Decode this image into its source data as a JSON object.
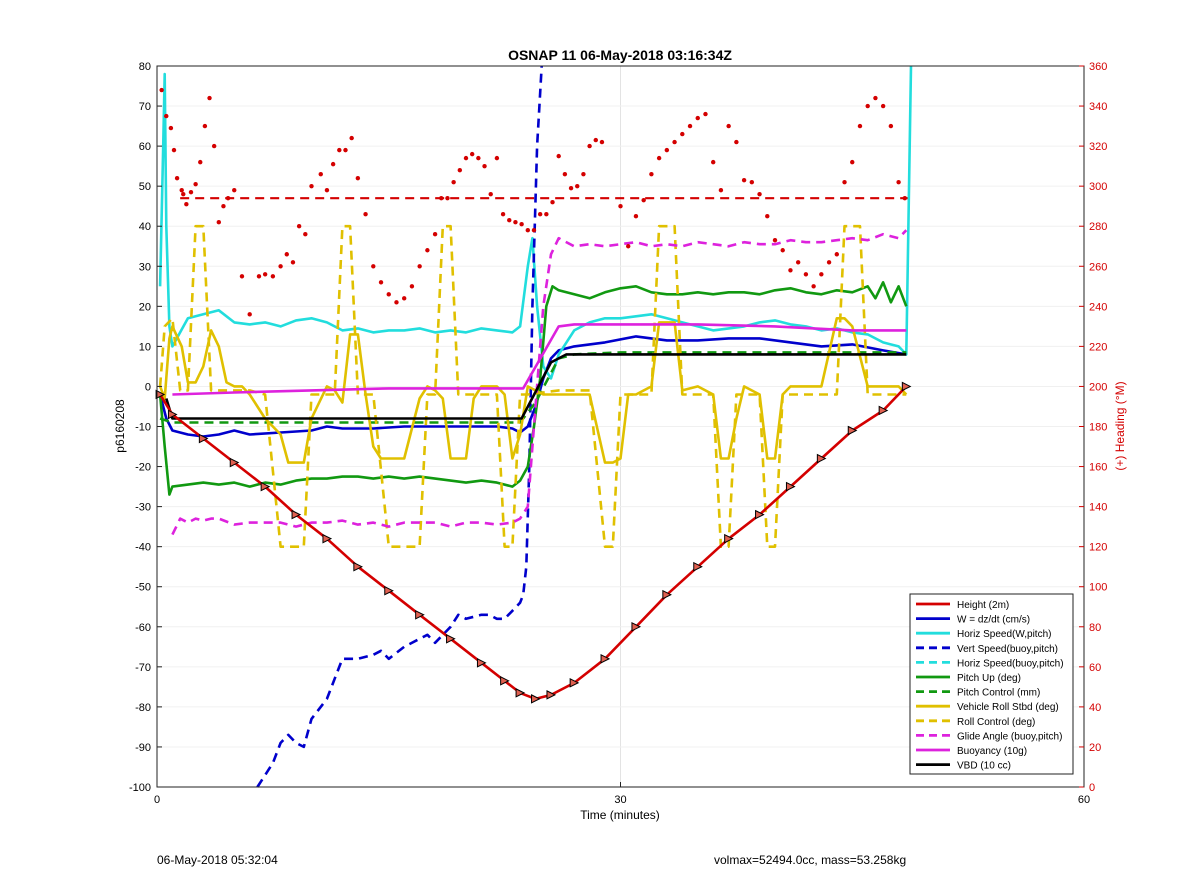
{
  "footer": {
    "left": "06-May-2018 05:32:04",
    "right": "volmax=52494.0cc, mass=53.258kg"
  },
  "chart_data": {
    "type": "line",
    "title": "OSNAP 11 06-May-2018 03:16:34Z",
    "xlabel": "Time (minutes)",
    "ylabel": "p6160208",
    "y2label": "(+) Heading (°M)",
    "xlim": [
      0,
      60
    ],
    "ylim": [
      -100,
      80
    ],
    "y2lim": [
      0,
      360
    ],
    "xticks": [
      0,
      30,
      60
    ],
    "yticks": [
      -100,
      -90,
      -80,
      -70,
      -60,
      -50,
      -40,
      -30,
      -20,
      -10,
      0,
      10,
      20,
      30,
      40,
      50,
      60,
      70,
      80
    ],
    "y2ticks": [
      0,
      20,
      40,
      60,
      80,
      100,
      120,
      140,
      160,
      180,
      200,
      220,
      240,
      260,
      280,
      300,
      320,
      340,
      360
    ],
    "grid": true,
    "legend_position": "bottom-right",
    "series": [
      {
        "name": "Height (2m)",
        "color": "#d40000",
        "style": "solid",
        "markers": true,
        "x": [
          0.2,
          1,
          3,
          5,
          7,
          9,
          11,
          13,
          15,
          17,
          19,
          21,
          22.5,
          23.5,
          24.5,
          25.5,
          27,
          29,
          31,
          33,
          35,
          37,
          39,
          41,
          43,
          45,
          47,
          48.5
        ],
        "y": [
          -2,
          -7,
          -13,
          -19,
          -25,
          -32,
          -38,
          -45,
          -51,
          -57,
          -63,
          -69,
          -73.5,
          -76.5,
          -78,
          -77,
          -74,
          -68,
          -60,
          -52,
          -45,
          -38,
          -32,
          -25,
          -18,
          -11,
          -6,
          0
        ]
      },
      {
        "name": "W = dz/dt (cm/s)",
        "color": "#0000cc",
        "style": "solid",
        "x": [
          0.2,
          0.6,
          1,
          2,
          3,
          4,
          5,
          6,
          8,
          10,
          11,
          12,
          14,
          16,
          18,
          20,
          22,
          23,
          23.5,
          24,
          24.5,
          25,
          25.5,
          26,
          27,
          29,
          31,
          33,
          35,
          37,
          39,
          41,
          43,
          45,
          47,
          48.5
        ],
        "y": [
          -2,
          -8,
          -11,
          -12,
          -12.5,
          -12,
          -11,
          -12,
          -11.5,
          -11,
          -10,
          -10.5,
          -10.5,
          -10,
          -10,
          -10,
          -10,
          -10.5,
          -11.5,
          -10,
          -5,
          2,
          7,
          9,
          10,
          11,
          12.5,
          11.5,
          11.5,
          12,
          12,
          11,
          10,
          10.5,
          9,
          8
        ]
      },
      {
        "name": "Horiz Speed(W,pitch)",
        "color": "#22dddd",
        "style": "solid",
        "x": [
          0.2,
          0.4,
          0.5,
          0.6,
          0.8,
          1,
          2,
          3,
          4,
          5,
          6,
          7,
          8,
          9,
          10,
          11,
          12,
          13,
          14,
          15,
          16,
          17,
          18,
          19,
          20,
          21,
          22,
          23,
          23.5,
          24,
          24.3,
          24.6,
          25,
          25.5,
          26,
          27,
          28,
          29,
          30,
          31,
          32,
          33,
          34,
          35,
          36,
          37,
          38,
          39,
          40,
          41,
          42,
          43,
          44,
          45,
          46,
          47,
          48,
          48.5,
          48.8
        ],
        "y": [
          25,
          60,
          78,
          40,
          15,
          10,
          17,
          18,
          19,
          16,
          15.5,
          16,
          15,
          16.5,
          17,
          16,
          14,
          14.5,
          13.5,
          14,
          14,
          14.5,
          13.5,
          14,
          13.5,
          14.5,
          14,
          13.5,
          15,
          30,
          37,
          20,
          5,
          2,
          8,
          14,
          16,
          17,
          17,
          17.5,
          18,
          17,
          16,
          15,
          14,
          14.5,
          15,
          16,
          16.5,
          15.5,
          15,
          14,
          14.5,
          13.5,
          13,
          11,
          10,
          8,
          80
        ]
      },
      {
        "name": "Vert Speed(buoy,pitch)",
        "color": "#0000cc",
        "style": "dashed",
        "x": [
          6.5,
          7.5,
          8,
          8.5,
          9,
          9.5,
          10,
          11,
          12,
          12.5,
          13,
          14,
          14.5,
          15,
          16,
          17,
          17.5,
          18,
          19,
          19.5,
          20,
          21,
          21.5,
          22,
          22.5,
          23,
          23.5,
          23.7,
          23.9,
          24.1,
          24.3,
          24.6,
          24.9
        ],
        "y": [
          -100,
          -94,
          -89,
          -87,
          -89,
          -90,
          -83,
          -78,
          -68,
          -68,
          -68,
          -67,
          -66,
          -68,
          -65,
          -63,
          -62,
          -64,
          -60,
          -57,
          -58,
          -57,
          -57,
          -58,
          -58,
          -56,
          -54,
          -52,
          -45,
          -20,
          20,
          60,
          80
        ]
      },
      {
        "name": "Horiz Speed(buoy,pitch)",
        "color": "#22dddd",
        "style": "dashed",
        "x": [],
        "y": []
      },
      {
        "name": "Pitch Up (deg)",
        "color": "#119911",
        "style": "solid",
        "x": [
          0.2,
          0.5,
          0.8,
          1,
          2,
          3,
          4,
          5,
          6,
          7,
          8,
          9,
          10,
          11,
          12,
          13,
          14,
          15,
          16,
          17,
          18,
          19,
          20,
          21,
          22,
          23,
          23.5,
          24,
          24.4,
          24.8,
          25.2,
          25.6,
          26,
          27,
          28,
          29,
          30,
          31,
          32,
          33,
          34,
          35,
          36,
          37,
          38,
          39,
          40,
          41,
          42,
          43,
          44,
          45,
          46,
          46.5,
          47,
          47.5,
          48,
          48.5
        ],
        "y": [
          -2,
          -15,
          -27,
          -25,
          -24.5,
          -24,
          -24.5,
          -24,
          -25,
          -24,
          -24.5,
          -23.5,
          -23,
          -23,
          -22.5,
          -22.5,
          -23,
          -22.5,
          -23,
          -22.5,
          -23,
          -23.5,
          -24,
          -23.5,
          -24,
          -25,
          -23.5,
          -20,
          -10,
          2,
          20,
          25,
          24,
          23,
          22,
          23.5,
          24.5,
          25,
          23.5,
          23,
          23,
          23.5,
          23,
          23.5,
          23.5,
          23,
          24,
          24.5,
          23.5,
          23,
          24,
          23.5,
          25,
          22,
          26,
          21,
          25,
          20
        ]
      },
      {
        "name": "Pitch Control (mm)",
        "color": "#119911",
        "style": "dashed",
        "x": [
          0.2,
          1,
          5,
          10,
          15,
          20,
          23.5,
          24.5,
          26,
          27,
          30,
          35,
          40,
          45,
          48.5
        ],
        "y": [
          -8,
          -9,
          -9,
          -9,
          -9,
          -9,
          -9,
          -4,
          7,
          8,
          8.5,
          8.5,
          8.5,
          8.5,
          8.5
        ]
      },
      {
        "name": "Vehicle Roll Stbd (deg)",
        "color": "#e0c000",
        "style": "solid",
        "x": [
          0.2,
          0.5,
          0.8,
          1,
          1.6,
          2,
          2.5,
          3,
          3.5,
          4,
          4.5,
          5,
          5.5,
          6,
          7,
          8,
          8.5,
          9.5,
          10,
          11,
          11.5,
          12,
          12.5,
          13,
          13.5,
          14,
          14.5,
          15,
          16,
          17,
          17.5,
          18,
          18.5,
          19,
          19.5,
          20,
          20.5,
          21,
          22,
          22.5,
          23,
          23.5,
          24,
          25,
          26,
          27,
          28,
          29,
          29.5,
          30,
          30.5,
          31,
          32,
          32.5,
          33,
          33.5,
          34,
          35,
          36,
          36.5,
          37,
          37.5,
          38,
          39,
          39.5,
          40,
          40.5,
          41,
          42,
          43,
          44,
          44.5,
          45,
          46,
          47,
          48,
          48.5
        ],
        "y": [
          0,
          -3,
          12,
          15,
          10,
          1,
          1,
          5,
          14,
          10,
          1,
          0,
          0,
          -2,
          -8,
          -12,
          -19,
          -19,
          -8,
          0,
          -1,
          -4,
          13,
          13,
          -2,
          -15,
          -18,
          -18,
          -18,
          -3,
          0,
          -1,
          -3,
          -18,
          -18,
          -18,
          -3,
          0,
          0,
          -2,
          -18,
          -12,
          0,
          -2,
          -2,
          -2,
          -2,
          -19,
          -19,
          -18,
          -2,
          -2,
          0,
          16,
          16,
          16,
          -1,
          0,
          -2,
          -18,
          -18,
          -8,
          0,
          -2,
          -18,
          -18,
          -2,
          0,
          0,
          0,
          17,
          17,
          15,
          0,
          0,
          0,
          -2
        ]
      },
      {
        "name": "Roll Control (deg)",
        "color": "#e0c000",
        "style": "dashed",
        "x": [
          0.2,
          0.5,
          1,
          1.5,
          2,
          2.5,
          3,
          3.5,
          4,
          4.5,
          5,
          6,
          7,
          8,
          8.5,
          9.5,
          10,
          11,
          11.5,
          12,
          12.5,
          13,
          13.5,
          14,
          15,
          16,
          17,
          17.5,
          18,
          18.5,
          19,
          19.5,
          20,
          20.5,
          21,
          22,
          22.5,
          23,
          23.5,
          24,
          26,
          27,
          28,
          29,
          29.5,
          30,
          30.5,
          31,
          32,
          32.5,
          33,
          33.5,
          34,
          35,
          36,
          36.5,
          37,
          37.5,
          38,
          39,
          39.5,
          40,
          40.5,
          41,
          42,
          43,
          44,
          44.5,
          45,
          45.5,
          46,
          47,
          48,
          48.5
        ],
        "y": [
          0,
          15,
          17,
          -1,
          -1,
          40,
          40,
          -1,
          -1,
          -1,
          -1,
          -1,
          -2,
          -40,
          -40,
          -40,
          -2,
          -2,
          -2,
          40,
          40,
          -2,
          -2,
          -2,
          -40,
          -40,
          -40,
          -2,
          -2,
          40,
          40,
          -2,
          -2,
          -2,
          -2,
          -2,
          -40,
          -40,
          -2,
          -2,
          -1,
          -1,
          -1,
          -40,
          -40,
          -2,
          -2,
          -2,
          -2,
          40,
          40,
          40,
          -2,
          -2,
          -2,
          -40,
          -40,
          -2,
          -2,
          -2,
          -40,
          -40,
          -2,
          -2,
          -2,
          -2,
          -2,
          40,
          40,
          40,
          -2,
          -2,
          -2,
          -2
        ]
      },
      {
        "name": "Glide Angle (buoy,pitch)",
        "color": "#dd22dd",
        "style": "dashed",
        "x": [
          1,
          1.5,
          2,
          2.5,
          3,
          3.5,
          4,
          5,
          6,
          7,
          8,
          9,
          10,
          11,
          12,
          13,
          14,
          15,
          16,
          17,
          18,
          19,
          20,
          21,
          22,
          23,
          23.5,
          24,
          24.5,
          25,
          25.5,
          26,
          27,
          28,
          29,
          30,
          31,
          32,
          33,
          34,
          35,
          36,
          37,
          38,
          39,
          40,
          41,
          42,
          43,
          44,
          45,
          46,
          47,
          48,
          48.5
        ],
        "y": [
          -37,
          -33,
          -34,
          -33,
          -33.5,
          -33,
          -33,
          -34.5,
          -34,
          -34,
          -34,
          -35,
          -34,
          -34,
          -33.5,
          -34.5,
          -34,
          -35,
          -34,
          -34,
          -34,
          -35,
          -34,
          -34,
          -34.5,
          -34,
          -33,
          -30,
          -5,
          20,
          33,
          37,
          35,
          35.5,
          35,
          35.5,
          36,
          35,
          35.5,
          35,
          36,
          35.5,
          35,
          36,
          35.5,
          35.5,
          36.5,
          36,
          36,
          36.5,
          37,
          36.5,
          38,
          37,
          39
        ]
      },
      {
        "name": "Buoyancy (10g)",
        "color": "#dd22dd",
        "style": "solid",
        "x": [
          1,
          5,
          10,
          15,
          20,
          23.7,
          26,
          27,
          30,
          35,
          40,
          45,
          48.5
        ],
        "y": [
          -2,
          -1.5,
          -1,
          -0.5,
          -0.5,
          -0.5,
          15,
          15.5,
          15.5,
          15.5,
          15,
          14,
          14
        ]
      },
      {
        "name": "VBD (10 cc)",
        "color": "#000000",
        "style": "solid",
        "x": [
          0.6,
          1,
          5,
          10,
          15,
          20,
          23.6,
          25.5,
          26.5,
          27,
          30,
          35,
          40,
          45,
          48.5
        ],
        "y": [
          -3,
          -8,
          -8,
          -8,
          -8,
          -8,
          -8,
          6,
          8,
          8,
          8,
          8,
          8,
          8,
          8
        ]
      }
    ],
    "reference_lines": [
      {
        "axis": "y2",
        "value": 294,
        "color": "#d40000",
        "style": "dashed"
      }
    ],
    "heading_points": {
      "color": "#d40000",
      "x": [
        0.3,
        0.6,
        0.9,
        1.1,
        1.3,
        1.6,
        1.7,
        1.9,
        2.2,
        2.5,
        2.8,
        3.1,
        3.4,
        3.7,
        4.0,
        4.3,
        4.6,
        5.0,
        5.5,
        6.0,
        6.6,
        7.0,
        7.5,
        8.0,
        8.4,
        8.8,
        9.2,
        9.6,
        10.0,
        10.6,
        11.0,
        11.4,
        11.8,
        12.2,
        12.6,
        13.0,
        13.5,
        14.0,
        14.5,
        15.0,
        15.5,
        16.0,
        16.5,
        17.0,
        17.5,
        18.0,
        18.4,
        18.8,
        19.2,
        19.6,
        20.0,
        20.4,
        20.8,
        21.2,
        21.6,
        22.0,
        22.4,
        22.8,
        23.2,
        23.6,
        24.0,
        24.4,
        24.8,
        25.2,
        25.6,
        26.0,
        26.4,
        26.8,
        27.2,
        27.6,
        28.0,
        28.4,
        28.8,
        30,
        30.5,
        31.0,
        31.5,
        32.0,
        32.5,
        33.0,
        33.5,
        34.0,
        34.5,
        35.0,
        35.5,
        36.0,
        36.5,
        37.0,
        37.5,
        38.0,
        38.5,
        39.0,
        39.5,
        40.0,
        40.5,
        41.0,
        41.5,
        42.0,
        42.5,
        43.0,
        43.5,
        44.0,
        44.5,
        45.0,
        45.5,
        46.0,
        46.5,
        47.0,
        47.5,
        48.0,
        48.4
      ],
      "y": [
        348,
        335,
        329,
        318,
        304,
        298,
        296,
        291,
        297,
        301,
        312,
        330,
        344,
        320,
        282,
        290,
        294,
        298,
        255,
        236,
        255,
        256,
        255,
        260,
        266,
        262,
        280,
        276,
        300,
        306,
        298,
        311,
        318,
        318,
        324,
        304,
        286,
        260,
        252,
        246,
        242,
        244,
        250,
        260,
        268,
        276,
        294,
        294,
        302,
        308,
        314,
        316,
        314,
        310,
        296,
        314,
        286,
        283,
        282,
        281,
        278,
        278,
        286,
        286,
        292,
        315,
        306,
        299,
        300,
        306,
        320,
        323,
        322,
        290,
        270,
        285,
        293,
        306,
        314,
        318,
        322,
        326,
        330,
        334,
        336,
        312,
        298,
        330,
        322,
        303,
        302,
        296,
        285,
        273,
        268,
        258,
        262,
        256,
        250,
        256,
        262,
        266,
        302,
        312,
        330,
        340,
        344,
        340,
        330,
        302,
        294
      ]
    }
  }
}
